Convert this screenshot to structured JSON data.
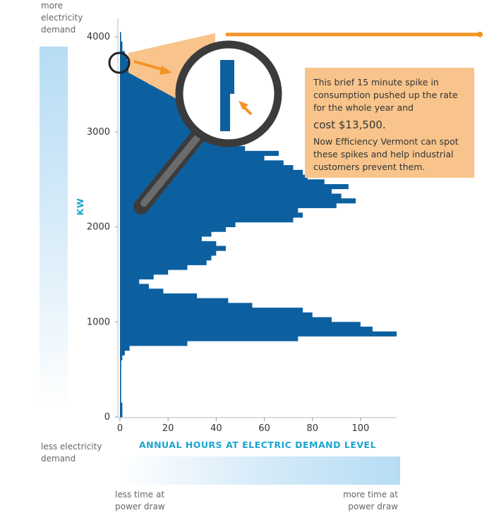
{
  "labels": {
    "more_demand": "more electricity demand",
    "less_demand": "less electricity demand",
    "less_time": "less time at power draw",
    "more_time": "more time at power draw"
  },
  "callout": {
    "line1": "This brief 15 minute spike in consumption pushed up the rate for the whole year and",
    "cost": "cost $13,500.",
    "line2": "Now Efficiency Vermont can spot these spikes and help industrial customers prevent them."
  },
  "colors": {
    "bars": "#0d60a0",
    "axis_title": "#1ba6cf",
    "callout_bg": "#f8c48b",
    "accent_orange": "#f39325",
    "magnifier": "#3b3b3b"
  },
  "chart_data": {
    "type": "bar",
    "orientation": "horizontal",
    "xlabel": "ANNUAL HOURS AT ELECTRIC DEMAND LEVEL",
    "ylabel": "KW",
    "xlim": [
      0,
      115
    ],
    "ylim": [
      0,
      4150
    ],
    "xticks": [
      0,
      20,
      40,
      60,
      80,
      100
    ],
    "yticks": [
      0,
      1000,
      2000,
      3000,
      4000
    ],
    "bin_width_kw": 50,
    "bins": [
      {
        "kw": 0,
        "hours": 1
      },
      {
        "kw": 50,
        "hours": 1
      },
      {
        "kw": 100,
        "hours": 1
      },
      {
        "kw": 150,
        "hours": 0.5
      },
      {
        "kw": 200,
        "hours": 0.5
      },
      {
        "kw": 250,
        "hours": 0.5
      },
      {
        "kw": 300,
        "hours": 0.5
      },
      {
        "kw": 350,
        "hours": 0.5
      },
      {
        "kw": 400,
        "hours": 0.5
      },
      {
        "kw": 450,
        "hours": 0.5
      },
      {
        "kw": 500,
        "hours": 0.5
      },
      {
        "kw": 550,
        "hours": 0.5
      },
      {
        "kw": 600,
        "hours": 1
      },
      {
        "kw": 650,
        "hours": 2
      },
      {
        "kw": 700,
        "hours": 4
      },
      {
        "kw": 750,
        "hours": 28
      },
      {
        "kw": 800,
        "hours": 74
      },
      {
        "kw": 850,
        "hours": 115
      },
      {
        "kw": 900,
        "hours": 105
      },
      {
        "kw": 950,
        "hours": 100
      },
      {
        "kw": 1000,
        "hours": 88
      },
      {
        "kw": 1050,
        "hours": 80
      },
      {
        "kw": 1100,
        "hours": 76
      },
      {
        "kw": 1150,
        "hours": 55
      },
      {
        "kw": 1200,
        "hours": 45
      },
      {
        "kw": 1250,
        "hours": 32
      },
      {
        "kw": 1300,
        "hours": 18
      },
      {
        "kw": 1350,
        "hours": 12
      },
      {
        "kw": 1400,
        "hours": 8
      },
      {
        "kw": 1450,
        "hours": 14
      },
      {
        "kw": 1500,
        "hours": 20
      },
      {
        "kw": 1550,
        "hours": 28
      },
      {
        "kw": 1600,
        "hours": 36
      },
      {
        "kw": 1650,
        "hours": 38
      },
      {
        "kw": 1700,
        "hours": 40
      },
      {
        "kw": 1750,
        "hours": 44
      },
      {
        "kw": 1800,
        "hours": 40
      },
      {
        "kw": 1850,
        "hours": 34
      },
      {
        "kw": 1900,
        "hours": 38
      },
      {
        "kw": 1950,
        "hours": 44
      },
      {
        "kw": 2000,
        "hours": 48
      },
      {
        "kw": 2050,
        "hours": 72
      },
      {
        "kw": 2100,
        "hours": 76
      },
      {
        "kw": 2150,
        "hours": 74
      },
      {
        "kw": 2200,
        "hours": 90
      },
      {
        "kw": 2250,
        "hours": 98
      },
      {
        "kw": 2300,
        "hours": 92
      },
      {
        "kw": 2350,
        "hours": 88
      },
      {
        "kw": 2400,
        "hours": 95
      },
      {
        "kw": 2450,
        "hours": 85
      },
      {
        "kw": 2500,
        "hours": 78
      },
      {
        "kw": 2550,
        "hours": 76
      },
      {
        "kw": 2600,
        "hours": 72
      },
      {
        "kw": 2650,
        "hours": 68
      },
      {
        "kw": 2700,
        "hours": 60
      },
      {
        "kw": 2750,
        "hours": 66
      },
      {
        "kw": 2800,
        "hours": 52
      },
      {
        "kw": 2850,
        "hours": 44
      },
      {
        "kw": 2900,
        "hours": 42
      },
      {
        "kw": 2950,
        "hours": 46
      },
      {
        "kw": 3000,
        "hours": 38
      },
      {
        "kw": 3050,
        "hours": 36
      },
      {
        "kw": 3100,
        "hours": 32
      },
      {
        "kw": 3150,
        "hours": 30
      },
      {
        "kw": 3200,
        "hours": 26
      },
      {
        "kw": 3250,
        "hours": 28
      },
      {
        "kw": 3300,
        "hours": 26
      },
      {
        "kw": 3350,
        "hours": 24
      },
      {
        "kw": 3400,
        "hours": 20
      },
      {
        "kw": 3450,
        "hours": 16
      },
      {
        "kw": 3500,
        "hours": 12
      },
      {
        "kw": 3550,
        "hours": 10
      },
      {
        "kw": 3600,
        "hours": 8
      },
      {
        "kw": 3650,
        "hours": 6
      },
      {
        "kw": 3700,
        "hours": 4
      },
      {
        "kw": 3750,
        "hours": 3
      },
      {
        "kw": 3800,
        "hours": 2
      },
      {
        "kw": 3850,
        "hours": 1
      },
      {
        "kw": 3900,
        "hours": 1
      },
      {
        "kw": 3950,
        "hours": 0.5
      },
      {
        "kw": 4000,
        "hours": 0.5
      }
    ],
    "spike_kw": 4000
  }
}
